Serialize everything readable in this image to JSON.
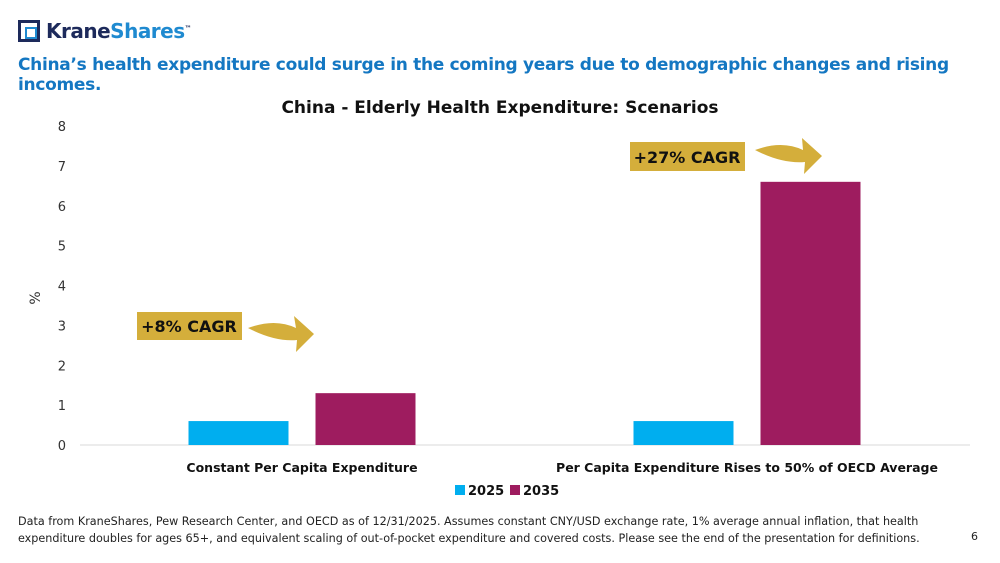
{
  "logo": {
    "part1": "Krane",
    "part2": "Shares",
    "tm": "™"
  },
  "headline": "China’s health expenditure could surge in the coming years due to demographic changes and rising incomes.",
  "footnote": "Data from KraneShares, Pew Research Center, and OECD as of 12/31/2025. Assumes constant CNY/USD exchange rate, 1% average annual inflation, that health expenditure doubles for ages 65+, and equivalent scaling of out-of-pocket expenditure and covered costs. Please see the end of the presentation for definitions.",
  "page_number": "6",
  "chart_data": {
    "type": "bar",
    "title": "China - Elderly Health Expenditure: Scenarios",
    "ylabel": "%",
    "xlabel": "",
    "ylim": [
      0,
      8
    ],
    "yticks": [
      "0",
      "1",
      "2",
      "3",
      "4",
      "5",
      "6",
      "7",
      "8"
    ],
    "categories": [
      "Constant Per Capita Expenditure",
      "Per Capita Expenditure Rises to 50% of OECD Average"
    ],
    "series": [
      {
        "name": "2025",
        "color": "#00aeef",
        "values": [
          0.6,
          0.6
        ]
      },
      {
        "name": "2035",
        "color": "#9e1c5f",
        "values": [
          1.3,
          6.6
        ]
      }
    ],
    "annotations": [
      "+8% CAGR",
      "+27% CAGR"
    ],
    "legend_position": "bottom",
    "grid": false
  }
}
